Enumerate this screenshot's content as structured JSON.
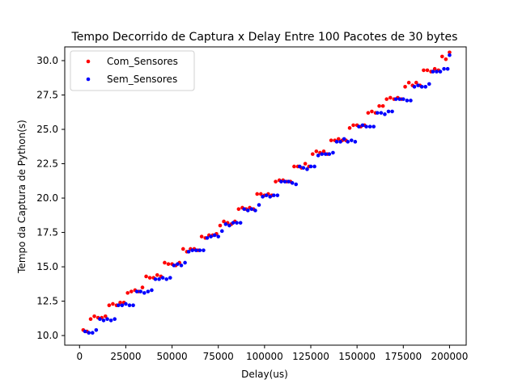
{
  "chart_data": {
    "type": "scatter",
    "title": "Tempo Decorrido de Captura x Delay Entre 100 Pacotes de 30 bytes",
    "xlabel": "Delay(us)",
    "ylabel": "Tempo da Captura de Python(s)",
    "xlim": [
      -8000,
      209000
    ],
    "ylim": [
      9.3,
      31.0
    ],
    "xticks": [
      0,
      25000,
      50000,
      75000,
      100000,
      125000,
      150000,
      175000,
      200000
    ],
    "yticks": [
      10.0,
      12.5,
      15.0,
      17.5,
      20.0,
      22.5,
      25.0,
      27.5,
      30.0
    ],
    "xtick_labels": [
      "0",
      "25000",
      "50000",
      "75000",
      "100000",
      "125000",
      "150000",
      "175000",
      "200000"
    ],
    "ytick_labels": [
      "10.0",
      "12.5",
      "15.0",
      "17.5",
      "20.0",
      "22.5",
      "25.0",
      "27.5",
      "30.0"
    ],
    "grid": false,
    "legend_position": "top-left",
    "series": [
      {
        "name": "Com_Sensores",
        "color": "#ff0000",
        "x": [
          2000,
          4000,
          6000,
          8000,
          10000,
          12000,
          14000,
          16000,
          18000,
          20000,
          22000,
          24000,
          26000,
          28000,
          30000,
          32000,
          34000,
          36000,
          38000,
          40000,
          42000,
          44000,
          46000,
          48000,
          50000,
          52000,
          54000,
          56000,
          58000,
          60000,
          62000,
          64000,
          66000,
          68000,
          70000,
          72000,
          74000,
          76000,
          78000,
          80000,
          82000,
          84000,
          86000,
          88000,
          90000,
          92000,
          94000,
          96000,
          98000,
          100000,
          102000,
          104000,
          106000,
          108000,
          110000,
          112000,
          114000,
          116000,
          118000,
          120000,
          122000,
          124000,
          126000,
          128000,
          130000,
          132000,
          134000,
          136000,
          138000,
          140000,
          142000,
          144000,
          146000,
          148000,
          150000,
          152000,
          154000,
          156000,
          158000,
          160000,
          162000,
          164000,
          166000,
          168000,
          170000,
          172000,
          174000,
          176000,
          178000,
          180000,
          182000,
          184000,
          186000,
          188000,
          190000,
          192000,
          194000,
          196000,
          198000,
          200000
        ],
        "y": [
          10.4,
          10.3,
          11.2,
          11.4,
          11.3,
          11.3,
          11.4,
          12.2,
          12.3,
          12.2,
          12.4,
          12.4,
          13.1,
          13.2,
          13.3,
          13.2,
          13.5,
          14.3,
          14.2,
          14.2,
          14.4,
          14.3,
          15.3,
          15.2,
          15.2,
          15.1,
          15.3,
          16.3,
          16.1,
          16.3,
          16.3,
          16.2,
          17.2,
          17.1,
          17.3,
          17.3,
          17.4,
          18.0,
          18.3,
          18.2,
          18.1,
          18.3,
          19.2,
          19.3,
          19.2,
          19.3,
          19.2,
          20.3,
          20.3,
          20.2,
          20.3,
          20.2,
          21.2,
          21.3,
          21.3,
          21.2,
          21.2,
          22.3,
          22.3,
          22.2,
          22.5,
          22.3,
          23.2,
          23.4,
          23.3,
          23.4,
          23.2,
          24.2,
          24.2,
          24.3,
          24.2,
          24.2,
          25.1,
          25.3,
          25.3,
          25.2,
          25.3,
          26.2,
          26.3,
          26.2,
          26.7,
          26.7,
          27.2,
          27.3,
          27.2,
          27.3,
          27.2,
          28.1,
          28.4,
          28.2,
          28.4,
          28.2,
          29.3,
          29.3,
          29.2,
          29.4,
          29.3,
          30.3,
          30.1,
          30.6
        ]
      },
      {
        "name": "Sem_Sensores",
        "color": "#0000ff",
        "x": [
          3000,
          5000,
          7000,
          9000,
          11000,
          13000,
          15000,
          17000,
          19000,
          21000,
          23000,
          25000,
          27000,
          29000,
          31000,
          33000,
          35000,
          37000,
          39000,
          41000,
          43000,
          45000,
          47000,
          49000,
          51000,
          53000,
          55000,
          57000,
          59000,
          61000,
          63000,
          65000,
          67000,
          69000,
          71000,
          73000,
          75000,
          77000,
          79000,
          81000,
          83000,
          85000,
          87000,
          89000,
          91000,
          93000,
          95000,
          97000,
          99000,
          101000,
          103000,
          105000,
          107000,
          109000,
          111000,
          113000,
          115000,
          117000,
          119000,
          121000,
          123000,
          125000,
          127000,
          129000,
          131000,
          133000,
          135000,
          137000,
          139000,
          141000,
          143000,
          145000,
          147000,
          149000,
          151000,
          153000,
          155000,
          157000,
          159000,
          161000,
          163000,
          165000,
          167000,
          169000,
          171000,
          173000,
          175000,
          177000,
          179000,
          181000,
          183000,
          185000,
          187000,
          189000,
          191000,
          193000,
          195000,
          197000,
          199000,
          200000
        ],
        "y": [
          10.3,
          10.2,
          10.2,
          10.4,
          11.2,
          11.1,
          11.2,
          11.1,
          11.2,
          12.2,
          12.2,
          12.3,
          12.2,
          12.2,
          13.2,
          13.2,
          13.1,
          13.2,
          13.3,
          14.1,
          14.1,
          14.2,
          14.1,
          14.2,
          15.1,
          15.2,
          15.1,
          15.3,
          16.1,
          16.2,
          16.2,
          16.2,
          16.2,
          17.1,
          17.2,
          17.3,
          17.2,
          17.6,
          18.1,
          18.0,
          18.2,
          18.2,
          18.2,
          19.2,
          19.1,
          19.2,
          19.1,
          19.5,
          20.1,
          20.2,
          20.1,
          20.2,
          20.2,
          21.2,
          21.2,
          21.2,
          21.1,
          21.0,
          22.3,
          22.2,
          22.1,
          22.3,
          22.3,
          23.1,
          23.2,
          23.2,
          23.2,
          23.3,
          24.1,
          24.1,
          24.3,
          24.1,
          24.2,
          24.1,
          25.2,
          25.3,
          25.2,
          25.2,
          25.2,
          26.2,
          26.2,
          26.1,
          26.3,
          26.3,
          27.2,
          27.2,
          27.2,
          27.1,
          27.1,
          28.1,
          28.2,
          28.1,
          28.1,
          28.3,
          29.2,
          29.2,
          29.2,
          29.4,
          29.4,
          30.4
        ]
      }
    ]
  }
}
